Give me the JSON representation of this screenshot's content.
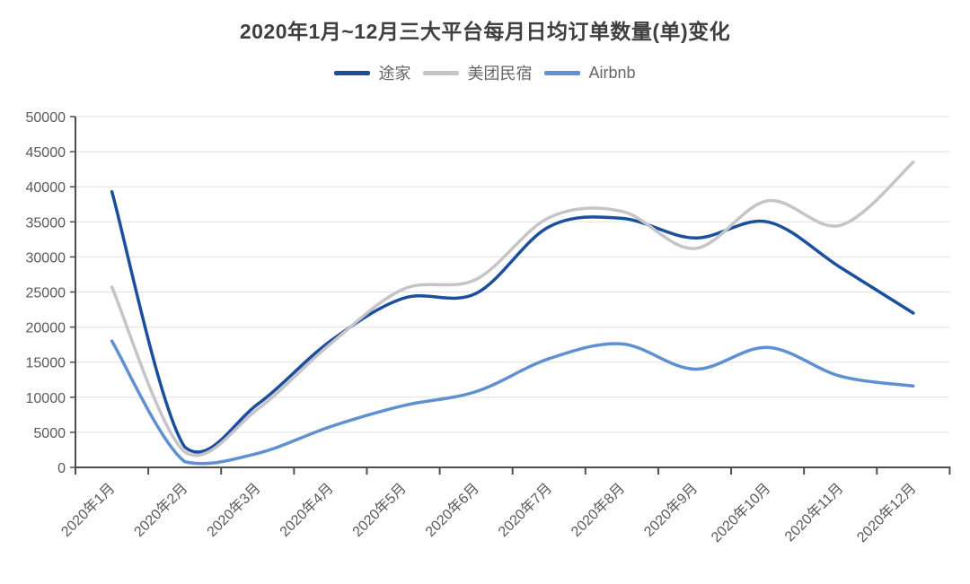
{
  "chart_data": {
    "type": "line",
    "title": "2020年1月~12月三大平台每月日均订单数量(单)变化",
    "categories": [
      "2020年1月",
      "2020年2月",
      "2020年3月",
      "2020年4月",
      "2020年5月",
      "2020年6月",
      "2020年7月",
      "2020年8月",
      "2020年9月",
      "2020年10月",
      "2020年11月",
      "2020年12月"
    ],
    "series": [
      {
        "name": "途家",
        "color": "#1a4f9d",
        "values": [
          39300,
          2900,
          9000,
          18000,
          24100,
          24800,
          34300,
          35500,
          32700,
          35000,
          28500,
          22000
        ]
      },
      {
        "name": "美团民宿",
        "color": "#c5c5c7",
        "values": [
          25700,
          2200,
          8300,
          17600,
          25400,
          26800,
          35600,
          36500,
          31200,
          38000,
          34500,
          43500
        ]
      },
      {
        "name": "Airbnb",
        "color": "#5e90d2",
        "values": [
          18000,
          800,
          2000,
          5800,
          8800,
          10800,
          15500,
          17600,
          14000,
          17100,
          13000,
          11600
        ]
      }
    ],
    "xlabel": "",
    "ylabel": "",
    "ylim": [
      0,
      50000
    ],
    "y_tick_step": 5000,
    "y_tick_labels": [
      "0",
      "5000",
      "10000",
      "15000",
      "20000",
      "25000",
      "30000",
      "35000",
      "40000",
      "45000",
      "50000"
    ],
    "grid": true,
    "smooth": true,
    "legend_position": "top",
    "x_label_rotation": 45
  },
  "style": {
    "grid_color": "#e0e0e0",
    "axis_color": "#4d4d4d",
    "tick_label_color": "#595959",
    "title_color": "#3f3f3f",
    "legend_text_color": "#666666",
    "background": "#ffffff"
  }
}
